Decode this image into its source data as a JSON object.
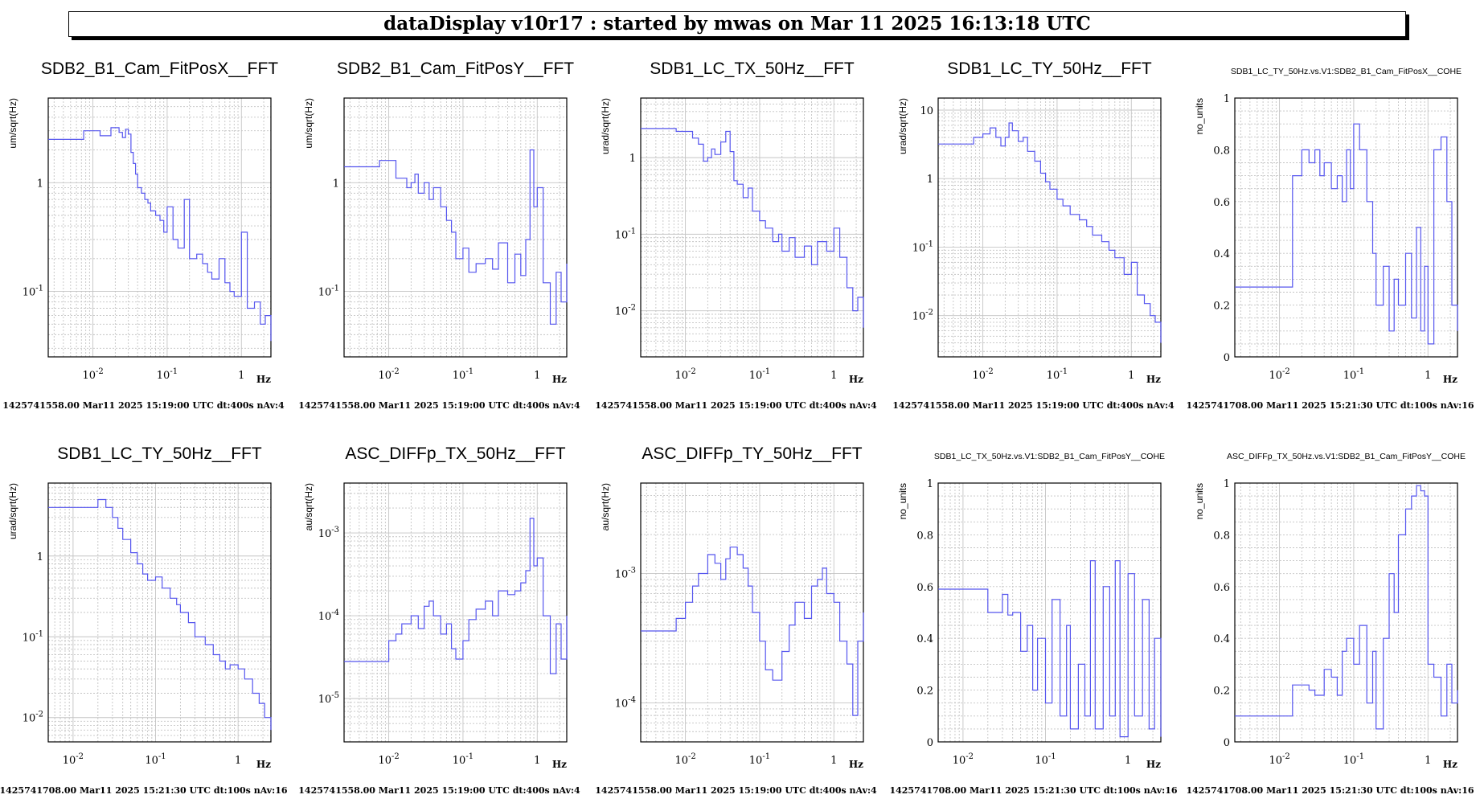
{
  "header": {
    "title": "dataDisplay v10r17 : started by mwas on Mar 11 2025 16:13:18 UTC"
  },
  "chart_data": [
    {
      "type": "line",
      "title": "SDB2_B1_Cam_FitPosX__FFT",
      "ylabel": "um/sqrt(Hz)",
      "xlabel": "Hz",
      "xscale": "log",
      "yscale": "log",
      "xlim": [
        0.0025,
        2.5
      ],
      "ylim": [
        0.025,
        6
      ],
      "xticks": [
        0.01,
        0.1,
        1
      ],
      "xtick_labels": [
        "10^-2",
        "10^-1",
        "1"
      ],
      "yticks": [
        0.1,
        1
      ],
      "ytick_labels": [
        "10^-1",
        "1"
      ],
      "footer": "1425741558.00 Mar11 2025 15:19:00 UTC dt:400s nAv:4",
      "color": "#5555ee",
      "x": [
        0.0025,
        0.005,
        0.0075,
        0.01,
        0.0125,
        0.015,
        0.0175,
        0.02,
        0.0225,
        0.025,
        0.0275,
        0.03,
        0.0325,
        0.035,
        0.0375,
        0.04,
        0.045,
        0.05,
        0.055,
        0.06,
        0.07,
        0.08,
        0.09,
        0.1,
        0.12,
        0.14,
        0.17,
        0.2,
        0.25,
        0.3,
        0.35,
        0.4,
        0.5,
        0.6,
        0.7,
        0.8,
        1.0,
        1.2,
        1.5,
        1.8,
        2.1,
        2.5
      ],
      "y": [
        2.5,
        2.5,
        3.0,
        3.0,
        2.7,
        2.7,
        3.2,
        3.2,
        2.9,
        2.6,
        3.1,
        2.8,
        1.9,
        1.5,
        1.2,
        0.9,
        0.8,
        0.7,
        0.65,
        0.55,
        0.5,
        0.45,
        0.35,
        0.6,
        0.3,
        0.25,
        0.7,
        0.2,
        0.22,
        0.18,
        0.15,
        0.13,
        0.2,
        0.12,
        0.1,
        0.09,
        0.35,
        0.07,
        0.08,
        0.05,
        0.06,
        0.035
      ]
    },
    {
      "type": "line",
      "title": "SDB2_B1_Cam_FitPosY__FFT",
      "ylabel": "um/sqrt(Hz)",
      "xlabel": "Hz",
      "xscale": "log",
      "yscale": "log",
      "xlim": [
        0.0025,
        2.5
      ],
      "ylim": [
        0.025,
        6
      ],
      "xticks": [
        0.01,
        0.1,
        1
      ],
      "xtick_labels": [
        "10^-2",
        "10^-1",
        "1"
      ],
      "yticks": [
        0.1,
        1
      ],
      "ytick_labels": [
        "10^-1",
        "1"
      ],
      "footer": "1425741558.00 Mar11 2025 15:19:00 UTC dt:400s nAv:4",
      "color": "#5555ee",
      "x": [
        0.0025,
        0.005,
        0.0075,
        0.01,
        0.0125,
        0.015,
        0.0175,
        0.02,
        0.0225,
        0.025,
        0.03,
        0.035,
        0.04,
        0.05,
        0.06,
        0.07,
        0.08,
        0.1,
        0.12,
        0.15,
        0.2,
        0.25,
        0.3,
        0.4,
        0.5,
        0.6,
        0.7,
        0.8,
        0.9,
        1.0,
        1.2,
        1.5,
        1.8,
        2.1,
        2.5
      ],
      "y": [
        1.4,
        1.4,
        1.6,
        1.6,
        1.1,
        1.1,
        0.9,
        1.0,
        1.2,
        0.8,
        1.0,
        0.7,
        0.9,
        0.6,
        0.45,
        0.35,
        0.2,
        0.25,
        0.15,
        0.18,
        0.2,
        0.16,
        0.28,
        0.12,
        0.22,
        0.14,
        0.3,
        2.0,
        0.6,
        0.9,
        0.12,
        0.05,
        0.15,
        0.08,
        0.18
      ]
    },
    {
      "type": "line",
      "title": "SDB1_LC_TX_50Hz__FFT",
      "ylabel": "urad/sqrt(Hz)",
      "xlabel": "Hz",
      "xscale": "log",
      "yscale": "log",
      "xlim": [
        0.0025,
        2.5
      ],
      "ylim": [
        0.0025,
        6
      ],
      "xticks": [
        0.01,
        0.1,
        1
      ],
      "xtick_labels": [
        "10^-2",
        "10^-1",
        "1"
      ],
      "yticks": [
        0.01,
        0.1,
        1
      ],
      "ytick_labels": [
        "10^-2",
        "10^-1",
        "1"
      ],
      "footer": "1425741558.00 Mar11 2025 15:19:00 UTC dt:400s nAv:4",
      "color": "#5555ee",
      "x": [
        0.0025,
        0.005,
        0.0075,
        0.01,
        0.0125,
        0.015,
        0.0175,
        0.02,
        0.0225,
        0.025,
        0.03,
        0.035,
        0.04,
        0.045,
        0.05,
        0.06,
        0.07,
        0.08,
        0.1,
        0.12,
        0.15,
        0.18,
        0.2,
        0.25,
        0.3,
        0.4,
        0.5,
        0.6,
        0.8,
        1.0,
        1.2,
        1.5,
        1.8,
        2.1,
        2.5
      ],
      "y": [
        2.4,
        2.4,
        2.2,
        2.2,
        1.8,
        1.5,
        0.9,
        1.0,
        1.3,
        1.1,
        1.6,
        2.2,
        1.2,
        0.5,
        0.45,
        0.3,
        0.4,
        0.2,
        0.15,
        0.12,
        0.08,
        0.1,
        0.06,
        0.09,
        0.05,
        0.07,
        0.04,
        0.08,
        0.06,
        0.12,
        0.05,
        0.02,
        0.01,
        0.015,
        0.006
      ]
    },
    {
      "type": "line",
      "title": "SDB1_LC_TY_50Hz__FFT",
      "ylabel": "urad/sqrt(Hz)",
      "xlabel": "Hz",
      "xscale": "log",
      "yscale": "log",
      "xlim": [
        0.0025,
        2.5
      ],
      "ylim": [
        0.0025,
        15
      ],
      "xticks": [
        0.01,
        0.1,
        1
      ],
      "xtick_labels": [
        "10^-2",
        "10^-1",
        "1"
      ],
      "yticks": [
        0.01,
        0.1,
        1,
        10
      ],
      "ytick_labels": [
        "10^-2",
        "10^-1",
        "1",
        "10"
      ],
      "footer": "1425741558.00 Mar11 2025 15:19:00 UTC dt:400s nAv:4",
      "color": "#5555ee",
      "x": [
        0.0025,
        0.005,
        0.0075,
        0.01,
        0.0125,
        0.015,
        0.0175,
        0.02,
        0.0225,
        0.025,
        0.03,
        0.035,
        0.04,
        0.05,
        0.06,
        0.07,
        0.08,
        0.1,
        0.12,
        0.15,
        0.2,
        0.25,
        0.3,
        0.4,
        0.5,
        0.6,
        0.8,
        1.0,
        1.2,
        1.5,
        1.8,
        2.1,
        2.5
      ],
      "y": [
        3.2,
        3.2,
        4.0,
        4.5,
        5.5,
        4.0,
        3.0,
        4.0,
        6.5,
        5.0,
        3.5,
        4.0,
        2.5,
        1.8,
        1.2,
        0.9,
        0.7,
        0.5,
        0.4,
        0.3,
        0.25,
        0.2,
        0.15,
        0.12,
        0.09,
        0.07,
        0.04,
        0.06,
        0.02,
        0.015,
        0.01,
        0.008,
        0.004
      ]
    },
    {
      "type": "line",
      "title": "SDB1_LC_TY_50Hz.vs.V1:SDB2_B1_Cam_FitPosX__COHE",
      "ylabel": "no_units",
      "xlabel": "Hz",
      "xscale": "log",
      "yscale": "linear",
      "xlim": [
        0.0025,
        2.5
      ],
      "ylim": [
        0,
        1
      ],
      "xticks": [
        0.01,
        0.1,
        1
      ],
      "xtick_labels": [
        "10^-2",
        "10^-1",
        "1"
      ],
      "yticks": [
        0,
        0.2,
        0.4,
        0.6,
        0.8,
        1
      ],
      "ytick_labels": [
        "0",
        "0.2",
        "0.4",
        "0.6",
        "0.8",
        "1"
      ],
      "footer": "1425741708.00 Mar11 2025 15:21:30 UTC dt:100s nAv:16",
      "color": "#5555ee",
      "x": [
        0.0025,
        0.01,
        0.015,
        0.02,
        0.025,
        0.03,
        0.035,
        0.04,
        0.05,
        0.06,
        0.07,
        0.08,
        0.09,
        0.1,
        0.12,
        0.15,
        0.18,
        0.2,
        0.25,
        0.3,
        0.35,
        0.4,
        0.5,
        0.6,
        0.7,
        0.8,
        0.9,
        1.0,
        1.2,
        1.5,
        1.8,
        2.1,
        2.5
      ],
      "y": [
        0.27,
        0.27,
        0.7,
        0.8,
        0.75,
        0.8,
        0.7,
        0.75,
        0.65,
        0.7,
        0.6,
        0.8,
        0.65,
        0.9,
        0.8,
        0.6,
        0.4,
        0.2,
        0.35,
        0.1,
        0.3,
        0.2,
        0.4,
        0.15,
        0.5,
        0.1,
        0.35,
        0.05,
        0.8,
        0.85,
        0.6,
        0.2,
        0.1
      ]
    },
    {
      "type": "line",
      "title": "SDB1_LC_TY_50Hz__FFT",
      "ylabel": "urad/sqrt(Hz)",
      "xlabel": "Hz",
      "xscale": "log",
      "yscale": "log",
      "xlim": [
        0.005,
        2.5
      ],
      "ylim": [
        0.005,
        8
      ],
      "xticks": [
        0.01,
        0.1,
        1
      ],
      "xtick_labels": [
        "10^-2",
        "10^-1",
        "1"
      ],
      "yticks": [
        0.01,
        0.1,
        1
      ],
      "ytick_labels": [
        "10^-2",
        "10^-1",
        "1"
      ],
      "footer": "1425741708.00 Mar11 2025 15:21:30 UTC dt:100s nAv:16",
      "color": "#5555ee",
      "x": [
        0.005,
        0.01,
        0.015,
        0.02,
        0.025,
        0.03,
        0.035,
        0.04,
        0.05,
        0.06,
        0.07,
        0.08,
        0.1,
        0.12,
        0.15,
        0.18,
        0.2,
        0.25,
        0.3,
        0.4,
        0.5,
        0.6,
        0.7,
        0.8,
        1.0,
        1.2,
        1.5,
        1.8,
        2.1,
        2.5
      ],
      "y": [
        4.0,
        4.0,
        4.0,
        5.0,
        4.0,
        3.0,
        2.2,
        1.6,
        1.1,
        0.8,
        0.6,
        0.5,
        0.55,
        0.4,
        0.3,
        0.25,
        0.2,
        0.15,
        0.1,
        0.08,
        0.06,
        0.05,
        0.04,
        0.045,
        0.04,
        0.03,
        0.02,
        0.015,
        0.01,
        0.007
      ]
    },
    {
      "type": "line",
      "title": "ASC_DIFFp_TX_50Hz__FFT",
      "ylabel": "au/sqrt(Hz)",
      "xlabel": "Hz",
      "xscale": "log",
      "yscale": "log",
      "xlim": [
        0.0025,
        2.5
      ],
      "ylim": [
        3e-06,
        0.004
      ],
      "xticks": [
        0.01,
        0.1,
        1
      ],
      "xtick_labels": [
        "10^-2",
        "10^-1",
        "1"
      ],
      "yticks": [
        1e-05,
        0.0001,
        0.001
      ],
      "ytick_labels": [
        "10^-5",
        "10^-4",
        "10^-3"
      ],
      "footer": "1425741558.00 Mar11 2025 15:19:00 UTC dt:400s nAv:4",
      "color": "#5555ee",
      "x": [
        0.0025,
        0.005,
        0.0075,
        0.01,
        0.0125,
        0.015,
        0.02,
        0.025,
        0.03,
        0.035,
        0.04,
        0.05,
        0.06,
        0.07,
        0.08,
        0.1,
        0.12,
        0.15,
        0.2,
        0.25,
        0.3,
        0.4,
        0.5,
        0.6,
        0.7,
        0.8,
        0.9,
        1.0,
        1.2,
        1.5,
        1.8,
        2.1,
        2.5
      ],
      "y": [
        2.8e-05,
        2.8e-05,
        2.8e-05,
        5e-05,
        6e-05,
        8e-05,
        0.0001,
        7e-05,
        0.00013,
        0.00015,
        0.0001,
        6e-05,
        8e-05,
        4e-05,
        3e-05,
        5e-05,
        9e-05,
        0.00012,
        0.00015,
        0.0001,
        0.0002,
        0.00018,
        0.0002,
        0.00025,
        0.00035,
        0.0015,
        0.0004,
        0.0005,
        0.0001,
        2e-05,
        8e-05,
        3e-05,
        0.0001
      ]
    },
    {
      "type": "line",
      "title": "ASC_DIFFp_TY_50Hz__FFT",
      "ylabel": "au/sqrt(Hz)",
      "xlabel": "Hz",
      "xscale": "log",
      "yscale": "log",
      "xlim": [
        0.0025,
        2.5
      ],
      "ylim": [
        5e-05,
        0.005
      ],
      "xticks": [
        0.01,
        0.1,
        1
      ],
      "xtick_labels": [
        "10^-2",
        "10^-1",
        "1"
      ],
      "yticks": [
        0.0001,
        0.001
      ],
      "ytick_labels": [
        "10^-4",
        "10^-3"
      ],
      "footer": "1425741558.00 Mar11 2025 15:19:00 UTC dt:400s nAv:4",
      "color": "#5555ee",
      "x": [
        0.0025,
        0.005,
        0.0075,
        0.01,
        0.0125,
        0.015,
        0.02,
        0.025,
        0.03,
        0.035,
        0.04,
        0.05,
        0.06,
        0.07,
        0.08,
        0.1,
        0.12,
        0.15,
        0.2,
        0.25,
        0.3,
        0.4,
        0.5,
        0.6,
        0.7,
        0.8,
        1.0,
        1.2,
        1.5,
        1.8,
        2.1,
        2.5
      ],
      "y": [
        0.00036,
        0.00036,
        0.00045,
        0.0006,
        0.0008,
        0.001,
        0.0014,
        0.0012,
        0.0009,
        0.0013,
        0.0016,
        0.0014,
        0.0011,
        0.0008,
        0.0005,
        0.0003,
        0.00018,
        0.00015,
        0.00025,
        0.0004,
        0.0006,
        0.00045,
        0.0008,
        0.0009,
        0.0011,
        0.0007,
        0.0006,
        0.0003,
        0.0002,
        8e-05,
        0.0003,
        0.0005
      ]
    },
    {
      "type": "line",
      "title": "SDB1_LC_TX_50Hz.vs.V1:SDB2_B1_Cam_FitPosY__COHE",
      "ylabel": "no_units",
      "xlabel": "Hz",
      "xscale": "log",
      "yscale": "linear",
      "xlim": [
        0.005,
        2.5
      ],
      "ylim": [
        0,
        1
      ],
      "xticks": [
        0.01,
        0.1,
        1
      ],
      "xtick_labels": [
        "10^-2",
        "10^-1",
        "1"
      ],
      "yticks": [
        0,
        0.2,
        0.4,
        0.6,
        0.8,
        1
      ],
      "ytick_labels": [
        "0",
        "0.2",
        "0.4",
        "0.6",
        "0.8",
        "1"
      ],
      "footer": "1425741708.00 Mar11 2025 15:21:30 UTC dt:100s nAv:16",
      "color": "#5555ee",
      "x": [
        0.005,
        0.015,
        0.02,
        0.025,
        0.03,
        0.035,
        0.04,
        0.05,
        0.06,
        0.07,
        0.08,
        0.1,
        0.12,
        0.15,
        0.18,
        0.2,
        0.25,
        0.3,
        0.35,
        0.4,
        0.5,
        0.6,
        0.7,
        0.8,
        1.0,
        1.2,
        1.5,
        1.8,
        2.1,
        2.5
      ],
      "y": [
        0.59,
        0.59,
        0.5,
        0.5,
        0.57,
        0.49,
        0.5,
        0.35,
        0.45,
        0.2,
        0.4,
        0.15,
        0.55,
        0.1,
        0.45,
        0.05,
        0.3,
        0.1,
        0.7,
        0.05,
        0.6,
        0.1,
        0.7,
        0.02,
        0.65,
        0.1,
        0.55,
        0.05,
        0.4,
        0.02
      ]
    },
    {
      "type": "line",
      "title": "ASC_DIFFp_TX_50Hz.vs.V1:SDB2_B1_Cam_FitPosY__COHE",
      "ylabel": "no_units",
      "xlabel": "Hz",
      "xscale": "log",
      "yscale": "linear",
      "xlim": [
        0.0025,
        2.5
      ],
      "ylim": [
        0,
        1
      ],
      "xticks": [
        0.01,
        0.1,
        1
      ],
      "xtick_labels": [
        "10^-2",
        "10^-1",
        "1"
      ],
      "yticks": [
        0,
        0.2,
        0.4,
        0.6,
        0.8,
        1
      ],
      "ytick_labels": [
        "0",
        "0.2",
        "0.4",
        "0.6",
        "0.8",
        "1"
      ],
      "footer": "1425741708.00 Mar11 2025 15:21:30 UTC dt:100s nAv:16",
      "color": "#5555ee",
      "x": [
        0.0025,
        0.01,
        0.015,
        0.02,
        0.025,
        0.03,
        0.04,
        0.05,
        0.06,
        0.07,
        0.08,
        0.1,
        0.12,
        0.15,
        0.18,
        0.2,
        0.25,
        0.3,
        0.35,
        0.4,
        0.5,
        0.6,
        0.7,
        0.8,
        0.9,
        1.0,
        1.2,
        1.5,
        1.8,
        2.1,
        2.5
      ],
      "y": [
        0.1,
        0.1,
        0.22,
        0.22,
        0.2,
        0.18,
        0.28,
        0.25,
        0.18,
        0.35,
        0.4,
        0.3,
        0.45,
        0.15,
        0.35,
        0.05,
        0.4,
        0.65,
        0.5,
        0.8,
        0.9,
        0.95,
        0.99,
        0.97,
        0.95,
        0.3,
        0.25,
        0.1,
        0.3,
        0.15,
        0.2
      ]
    }
  ]
}
